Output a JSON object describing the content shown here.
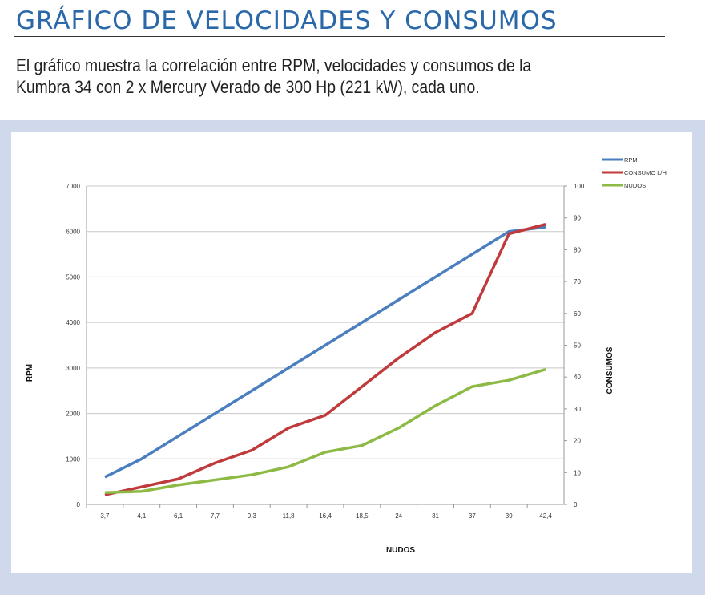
{
  "header": {
    "title": "GRÁFICO DE VELOCIDADES Y CONSUMOS",
    "description_line1": "El gráfico muestra la correlación entre RPM, velocidades y consumos de la",
    "description_line2": "Kumbra 34  con 2 x Mercury Verado de 300 Hp (221 kW), cada uno."
  },
  "chart_data": {
    "type": "line",
    "xlabel": "NUDOS",
    "ylabel": "RPM",
    "y2label": "CONSUMOS",
    "categories": [
      "3,7",
      "4,1",
      "6,1",
      "7,7",
      "9,3",
      "11,8",
      "16,4",
      "18,5",
      "24",
      "31",
      "37",
      "39",
      "42,4"
    ],
    "ylim": [
      0,
      7000
    ],
    "yticks": [
      0,
      1000,
      2000,
      3000,
      4000,
      5000,
      6000,
      7000
    ],
    "y2lim": [
      0,
      100
    ],
    "y2ticks": [
      0,
      10,
      20,
      30,
      40,
      50,
      60,
      70,
      80,
      90,
      100
    ],
    "grid": true,
    "legend": "top-right",
    "series": [
      {
        "name": "RPM",
        "axis": "left",
        "color": "#4a7ebf",
        "values": [
          600,
          1000,
          1500,
          2000,
          2500,
          3000,
          3500,
          4000,
          4500,
          5000,
          5500,
          6000,
          6100
        ]
      },
      {
        "name": "CONSUMO L/H",
        "axis": "right",
        "color": "#c0393b",
        "values": [
          3,
          5.5,
          8,
          13,
          17,
          24,
          28,
          37,
          46,
          54,
          60,
          85,
          88
        ]
      },
      {
        "name": "NUDOS",
        "axis": "right",
        "color": "#8dba45",
        "values": [
          3.7,
          4.1,
          6.1,
          7.7,
          9.3,
          11.8,
          16.4,
          18.5,
          24,
          31,
          37,
          39,
          42.4
        ]
      }
    ]
  }
}
